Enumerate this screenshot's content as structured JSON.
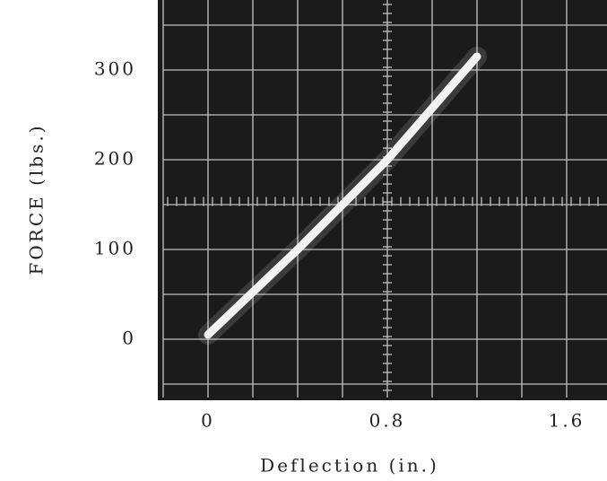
{
  "chart_data": {
    "type": "line",
    "xlabel": "Deflection (in.)",
    "ylabel": "FORCE (lbs.)",
    "series": [
      {
        "color": "#f2f2f2",
        "x": [
          0,
          0.4,
          0.8,
          1.2
        ],
        "values": [
          5,
          100,
          200,
          315
        ]
      }
    ],
    "xlim": [
      -0.2,
      1.78
    ],
    "ylim": [
      -65,
      378
    ],
    "xticks": [
      0,
      0.8,
      1.6
    ],
    "yticks": [
      0,
      100,
      200,
      300
    ],
    "grid": true
  }
}
